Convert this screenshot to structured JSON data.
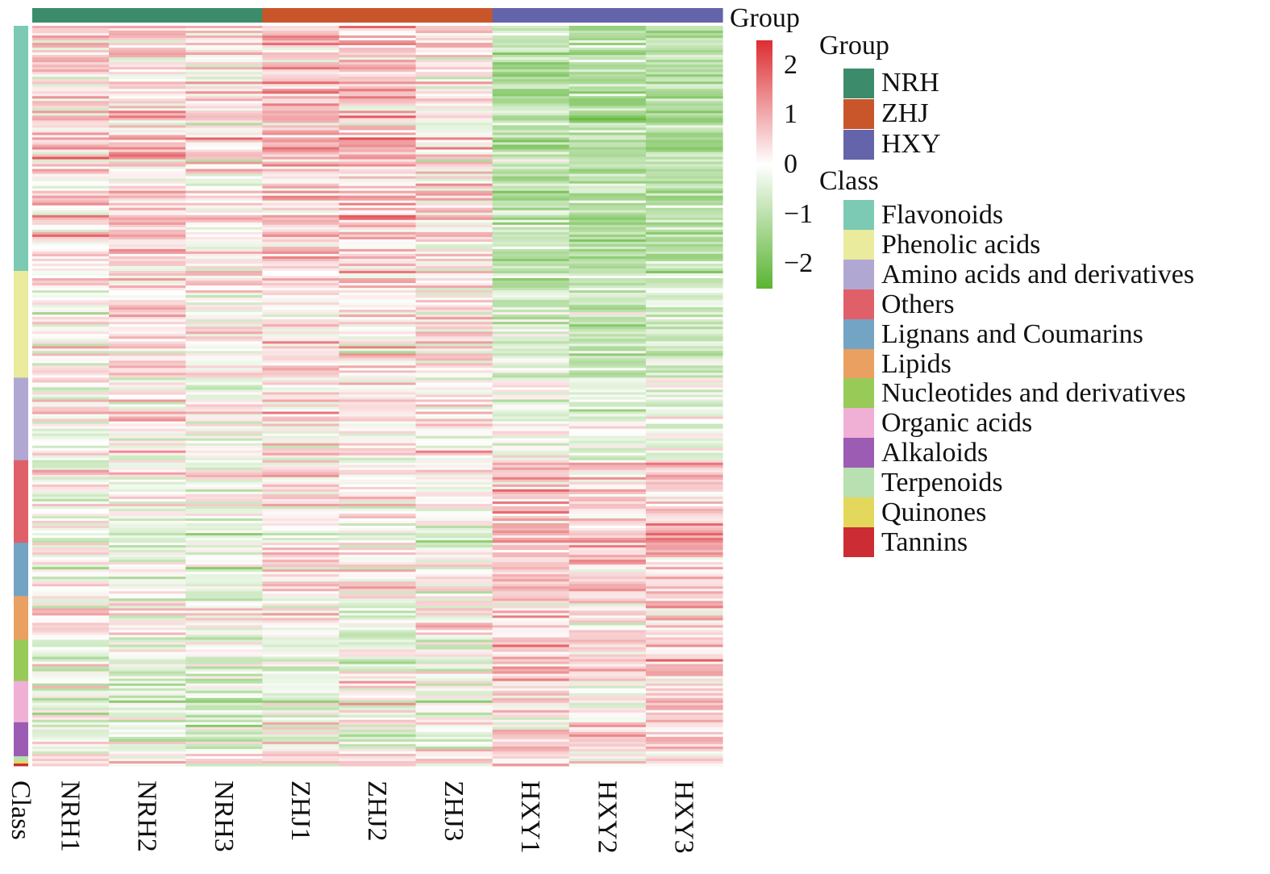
{
  "chart_data": {
    "type": "heatmap",
    "columns": [
      "NRH1",
      "NRH2",
      "NRH3",
      "ZHJ1",
      "ZHJ2",
      "ZHJ3",
      "HXY1",
      "HXY2",
      "HXY3"
    ],
    "column_groups": [
      "NRH",
      "NRH",
      "NRH",
      "ZHJ",
      "ZHJ",
      "ZHJ",
      "HXY",
      "HXY",
      "HXY"
    ],
    "row_annotation_label": "Class",
    "column_annotation_label": "Group",
    "color_scale": {
      "min": -2.5,
      "max": 2.5,
      "ticks": [
        "2",
        "1",
        "0",
        "−1",
        "−2"
      ],
      "tick_values": [
        2,
        1,
        0,
        -1,
        -2
      ],
      "low_color": "#5ab432",
      "mid_color": "#ffffff",
      "high_color": "#dc2d32"
    },
    "groups": [
      {
        "name": "NRH",
        "color": "#3c8c6c"
      },
      {
        "name": "ZHJ",
        "color": "#c8562a"
      },
      {
        "name": "HXY",
        "color": "#6464aa"
      }
    ],
    "classes": [
      {
        "name": "Flavonoids",
        "color": "#7ccab4",
        "rows": 101
      },
      {
        "name": "Phenolic acids",
        "color": "#eaeb9c",
        "rows": 44
      },
      {
        "name": "Amino acids and derivatives",
        "color": "#b0a8d2",
        "rows": 34
      },
      {
        "name": "Others",
        "color": "#e0606a",
        "rows": 34
      },
      {
        "name": "Lignans and Coumarins",
        "color": "#74a4c4",
        "rows": 22
      },
      {
        "name": "Lipids",
        "color": "#eaa060",
        "rows": 18
      },
      {
        "name": "Nucleotides and derivatives",
        "color": "#98ca58",
        "rows": 17
      },
      {
        "name": "Organic acids",
        "color": "#f0b0d6",
        "rows": 17
      },
      {
        "name": "Alkaloids",
        "color": "#9c5cb4",
        "rows": 14
      },
      {
        "name": "Terpenoids",
        "color": "#b8e0b0",
        "rows": 2
      },
      {
        "name": "Quinones",
        "color": "#e4d85c",
        "rows": 1
      },
      {
        "name": "Tannins",
        "color": "#cc2c34",
        "rows": 1
      }
    ],
    "block_trend": [
      [
        0.45,
        0.55,
        0.25,
        0.65,
        0.65,
        0.35,
        -1.1,
        -1.1,
        -1.1
      ],
      [
        0.1,
        0.45,
        0.2,
        0.45,
        0.3,
        0.4,
        -0.7,
        -0.9,
        -0.8
      ],
      [
        0.1,
        0.15,
        0.0,
        0.2,
        0.1,
        0.3,
        -0.2,
        -0.4,
        -0.3
      ],
      [
        -0.25,
        -0.1,
        -0.3,
        0.1,
        -0.1,
        -0.2,
        0.8,
        0.55,
        0.8
      ],
      [
        -0.1,
        -0.3,
        -0.4,
        0.2,
        0.0,
        -0.2,
        0.6,
        0.7,
        0.6
      ],
      [
        0.2,
        0.1,
        -0.1,
        0.0,
        -0.2,
        0.2,
        0.45,
        0.3,
        0.5
      ],
      [
        -0.35,
        -0.5,
        -0.4,
        -0.3,
        -0.3,
        -0.3,
        0.6,
        0.6,
        0.7
      ],
      [
        -0.3,
        -0.45,
        -0.6,
        -0.4,
        0.2,
        -0.3,
        0.1,
        -0.2,
        0.4
      ],
      [
        -0.2,
        -0.2,
        -0.3,
        0.0,
        -0.2,
        -0.1,
        0.6,
        0.4,
        0.3
      ],
      [
        0.2,
        0.0,
        -0.1,
        0.4,
        0.2,
        0.2,
        0.6,
        0.3,
        0.4
      ],
      [
        0.3,
        0.2,
        0.1,
        0.3,
        0.4,
        0.2,
        0.4,
        0.3,
        0.4
      ],
      [
        0.0,
        0.0,
        -0.2,
        0.2,
        0.2,
        0.0,
        0.4,
        0.3,
        0.4
      ]
    ]
  },
  "legend": {
    "group_title": "Group",
    "class_title": "Class"
  },
  "top_bar_label": "Group",
  "side_bar_label": "Class"
}
